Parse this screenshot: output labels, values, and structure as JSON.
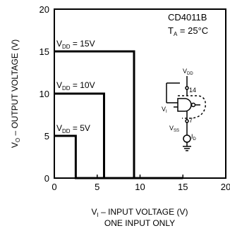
{
  "chart_data": {
    "type": "line",
    "xlabel": {
      "main": "V",
      "sub": "I",
      "rest": " – INPUT VOLTAGE (V)"
    },
    "xlabel2": "ONE INPUT ONLY",
    "ylabel": {
      "main": "V",
      "sub": "O",
      "rest": " – OUTPUT VOLTAGE (V)"
    },
    "xlim": [
      0,
      20
    ],
    "ylim": [
      0,
      20
    ],
    "xticks": [
      "0",
      "5",
      "10",
      "15",
      "20"
    ],
    "yticks": [
      "0",
      "5",
      "10",
      "15",
      "20"
    ],
    "grid": false,
    "annotations": {
      "part": "CD4011B",
      "temp": {
        "main": "T",
        "sub": "A",
        "rest": " = 25°C"
      }
    },
    "series": [
      {
        "name": {
          "main": "V",
          "sub": "DD",
          "rest": " = 15V"
        },
        "x": [
          0,
          9.3,
          9.3,
          15
        ],
        "y": [
          15,
          15,
          0,
          0
        ]
      },
      {
        "name": {
          "main": "V",
          "sub": "DD",
          "rest": " = 10V"
        },
        "x": [
          0,
          5.8,
          5.8,
          15
        ],
        "y": [
          10,
          10,
          0,
          0
        ]
      },
      {
        "name": {
          "main": "V",
          "sub": "DD",
          "rest": " = 5V"
        },
        "x": [
          0,
          2.5,
          2.5,
          15
        ],
        "y": [
          5,
          5,
          0,
          0
        ]
      }
    ],
    "inset": {
      "vdd": {
        "main": "V",
        "sub": "DD"
      },
      "pin14": "14",
      "vi": {
        "main": "V",
        "sub": "I"
      },
      "vss": {
        "main": "V",
        "sub": "SS"
      },
      "id": {
        "main": "I",
        "sub": "D"
      },
      "pin7": "7"
    }
  }
}
